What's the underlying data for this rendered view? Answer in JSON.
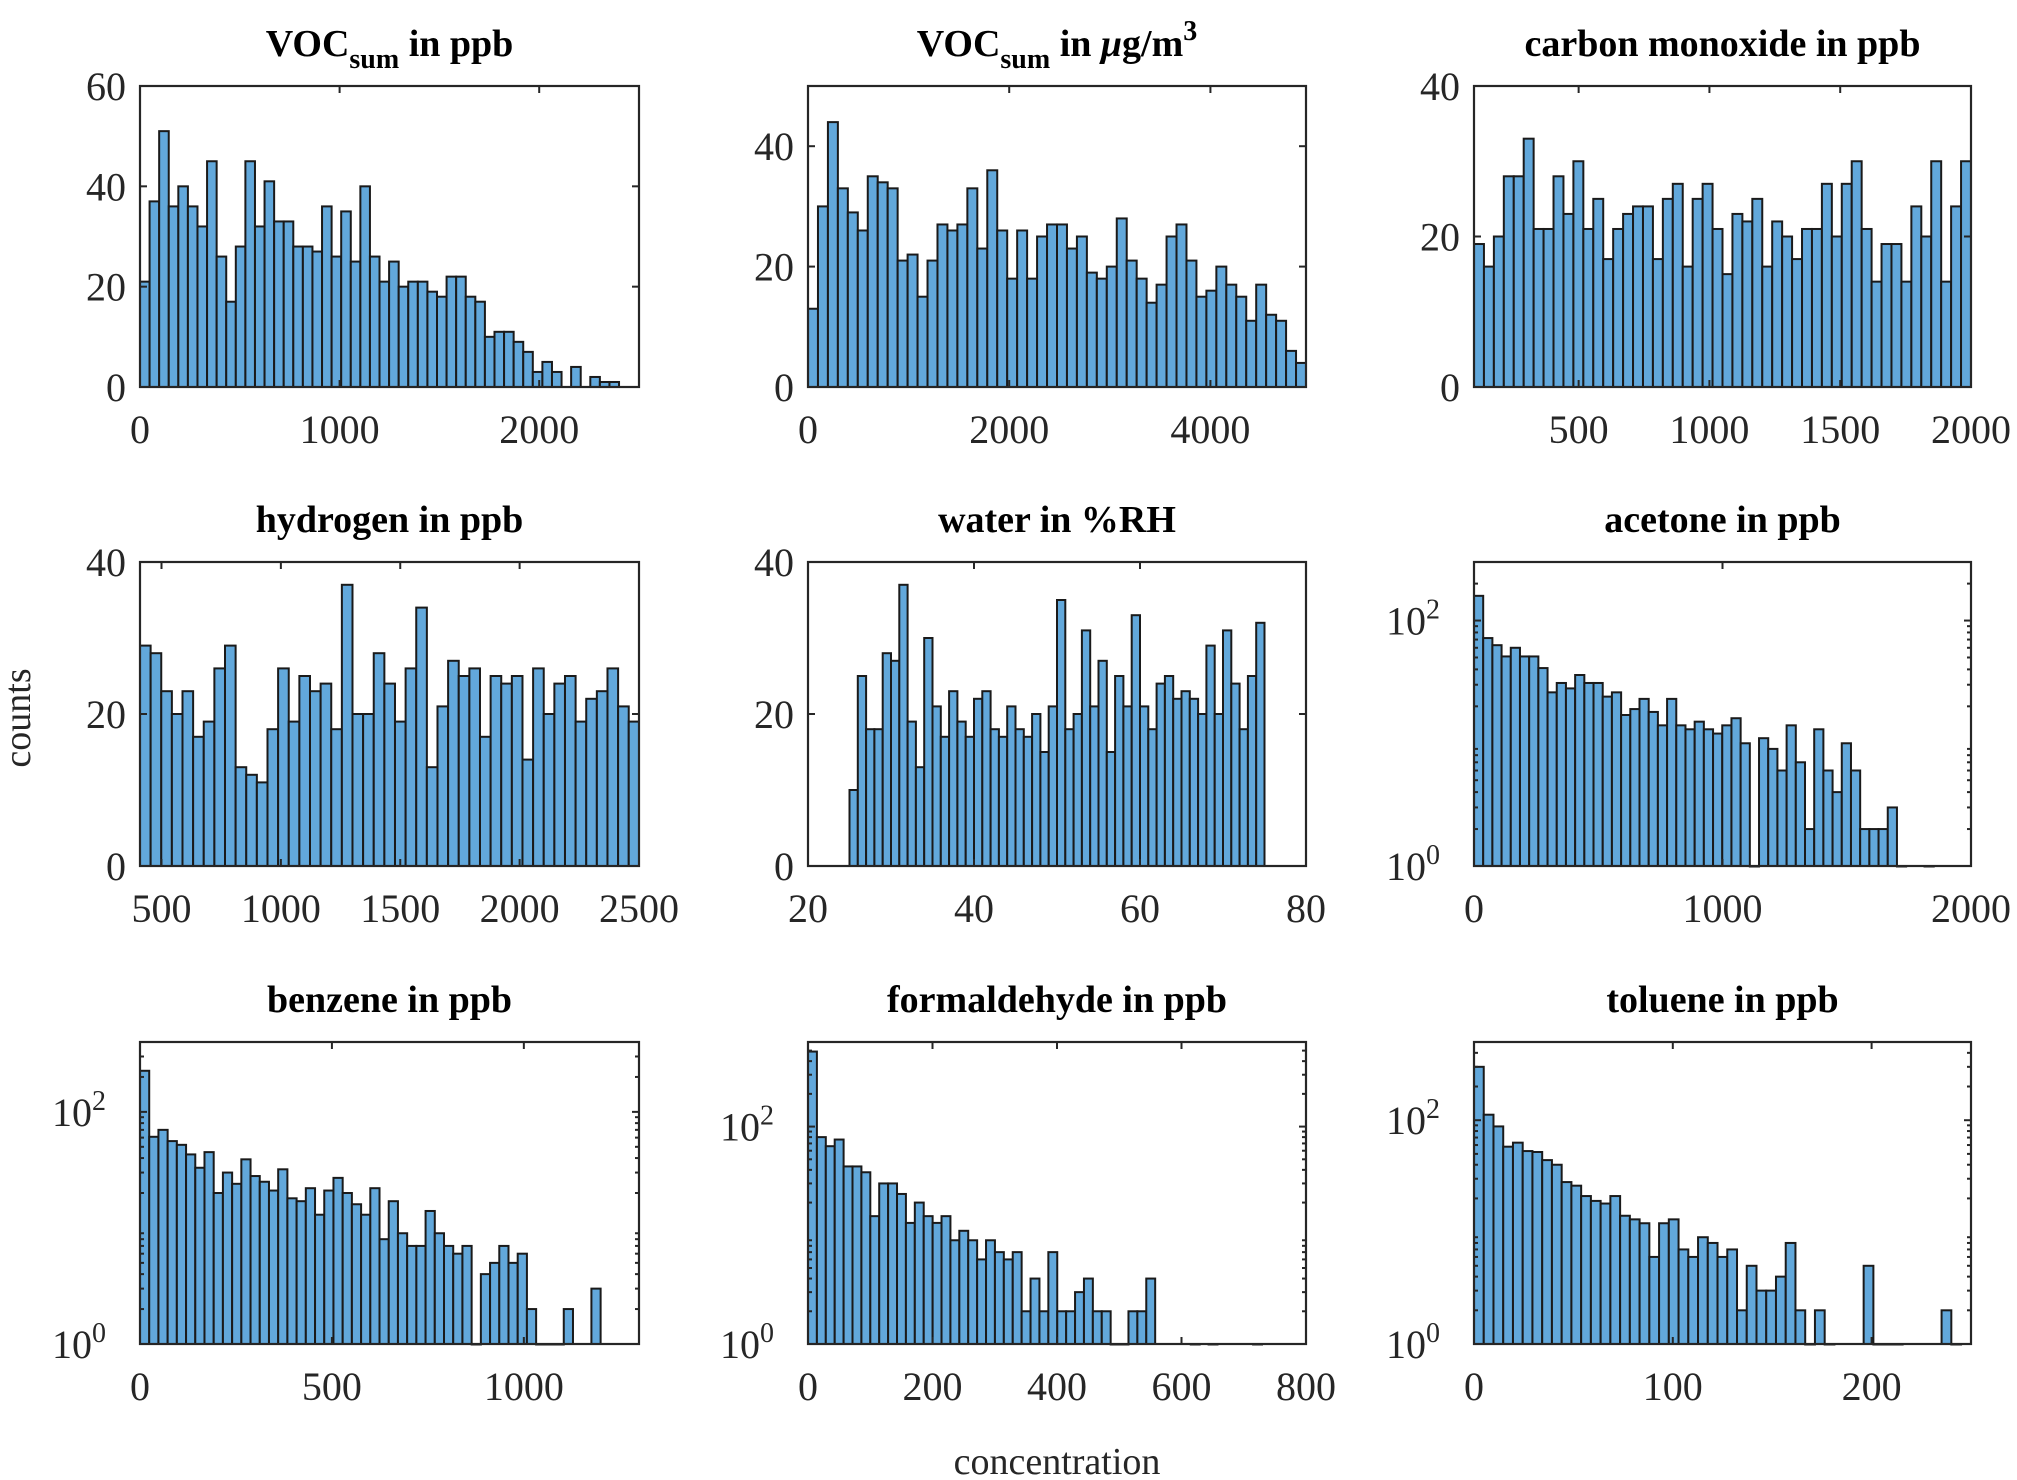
{
  "chart_data": {
    "type": "bar",
    "layout": "3x3 grid of histograms",
    "xlabel": "concentration",
    "ylabel": "counts",
    "bar_color": "#62A8DB",
    "edge_color": "#1a1a1a",
    "panels": [
      {
        "title": "VOC",
        "title_sub": "sum",
        "title_rest": " in ppb",
        "title_italic_mu": false,
        "yscale": "linear",
        "xlim": [
          0,
          2500
        ],
        "ylim": [
          0,
          60
        ],
        "xticks": [
          0,
          1000,
          2000
        ],
        "xtick_labels": [
          "0",
          "1000",
          "2000"
        ],
        "yticks": [
          0,
          20,
          40,
          60
        ],
        "ytick_labels": [
          "0",
          "20",
          "40",
          "60"
        ],
        "bin_start": 0,
        "bin_width": 48,
        "counts": [
          21,
          37,
          51,
          36,
          40,
          36,
          32,
          45,
          26,
          17,
          28,
          45,
          32,
          41,
          33,
          33,
          28,
          28,
          27,
          36,
          26,
          35,
          25,
          40,
          26,
          21,
          25,
          20,
          21,
          21,
          19,
          18,
          22,
          22,
          18,
          17,
          10,
          11,
          11,
          9,
          7,
          3,
          5,
          3,
          0,
          4,
          0,
          2,
          1,
          1
        ]
      },
      {
        "title": "VOC",
        "title_sub": "sum",
        "title_rest": " in ",
        "title_italic_mu": true,
        "title_unit": "g/m",
        "title_sup": "3",
        "yscale": "linear",
        "xlim": [
          0,
          4950
        ],
        "ylim": [
          0,
          50
        ],
        "xticks": [
          0,
          2000,
          4000
        ],
        "xtick_labels": [
          "0",
          "2000",
          "4000"
        ],
        "yticks": [
          0,
          20,
          40
        ],
        "ytick_labels": [
          "0",
          "20",
          "40"
        ],
        "bin_start": 0,
        "bin_width": 99,
        "counts": [
          13,
          30,
          44,
          33,
          29,
          26,
          35,
          34,
          33,
          21,
          22,
          15,
          21,
          27,
          26,
          27,
          33,
          23,
          36,
          26,
          18,
          26,
          18,
          25,
          27,
          27,
          23,
          25,
          19,
          18,
          20,
          28,
          21,
          18,
          14,
          17,
          25,
          27,
          21,
          15,
          16,
          20,
          17,
          15,
          11,
          17,
          12,
          11,
          6,
          4
        ]
      },
      {
        "title": "carbon monoxide in ppb",
        "yscale": "linear",
        "xlim": [
          100,
          2000
        ],
        "ylim": [
          0,
          40
        ],
        "xticks": [
          500,
          1000,
          1500,
          2000
        ],
        "xtick_labels": [
          "500",
          "1000",
          "1500",
          "2000"
        ],
        "yticks": [
          0,
          20,
          40
        ],
        "ytick_labels": [
          "0",
          "20",
          "40"
        ],
        "bin_start": 100,
        "bin_width": 38,
        "counts": [
          19,
          16,
          20,
          28,
          28,
          33,
          21,
          21,
          28,
          23,
          30,
          21,
          25,
          17,
          21,
          23,
          24,
          24,
          17,
          25,
          27,
          16,
          25,
          27,
          21,
          15,
          23,
          22,
          25,
          16,
          22,
          20,
          17,
          21,
          21,
          27,
          20,
          27,
          30,
          21,
          14,
          19,
          19,
          14,
          24,
          20,
          30,
          14,
          24,
          30
        ]
      },
      {
        "title": "hydrogen in ppb",
        "yscale": "linear",
        "xlim": [
          410,
          2500
        ],
        "ylim": [
          0,
          40
        ],
        "xticks": [
          500,
          1000,
          1500,
          2000,
          2500
        ],
        "xtick_labels": [
          "500",
          "1000",
          "1500",
          "2000",
          "2500"
        ],
        "yticks": [
          0,
          20,
          40
        ],
        "ytick_labels": [
          "0",
          "20",
          "40"
        ],
        "bin_start": 410,
        "bin_width": 44.5,
        "counts": [
          29,
          28,
          23,
          20,
          23,
          17,
          19,
          26,
          29,
          13,
          12,
          11,
          18,
          26,
          19,
          25,
          23,
          24,
          18,
          37,
          20,
          20,
          28,
          24,
          19,
          26,
          34,
          13,
          21,
          27,
          25,
          26,
          17,
          25,
          24,
          25,
          14,
          26,
          20,
          24,
          25,
          19,
          22,
          23,
          26,
          21,
          19
        ]
      },
      {
        "title": "water in %RH",
        "yscale": "linear",
        "xlim": [
          20,
          80
        ],
        "ylim": [
          0,
          40
        ],
        "xticks": [
          20,
          40,
          60,
          80
        ],
        "xtick_labels": [
          "20",
          "40",
          "60",
          "80"
        ],
        "yticks": [
          0,
          20,
          40
        ],
        "ytick_labels": [
          "0",
          "20",
          "40"
        ],
        "bin_start": 25,
        "bin_width": 1,
        "counts": [
          10,
          25,
          18,
          18,
          28,
          27,
          37,
          19,
          13,
          30,
          21,
          17,
          23,
          19,
          17,
          22,
          23,
          18,
          17,
          21,
          18,
          17,
          20,
          15,
          21,
          35,
          18,
          20,
          31,
          21,
          27,
          15,
          25,
          21,
          33,
          21,
          18,
          24,
          25,
          22,
          23,
          22,
          20,
          29,
          20,
          31,
          24,
          18,
          25,
          32
        ]
      },
      {
        "title": "acetone in ppb",
        "yscale": "log",
        "xlim": [
          0,
          2000
        ],
        "ylim": [
          1,
          300
        ],
        "xticks": [
          0,
          1000,
          2000
        ],
        "xtick_labels": [
          "0",
          "1000",
          "2000"
        ],
        "yticks": [
          1,
          100
        ],
        "ytick_labels": [
          "10^0",
          "10^2"
        ],
        "bin_start": 0,
        "bin_width": 37,
        "counts": [
          159,
          72,
          63,
          51,
          60,
          51,
          51,
          41,
          26,
          31,
          28,
          36,
          31,
          31,
          24,
          26,
          17,
          19,
          23,
          18,
          14,
          23,
          14,
          13,
          15,
          13,
          12,
          14,
          16,
          10,
          1,
          11,
          9,
          6,
          14,
          7,
          2,
          13,
          6,
          4,
          10,
          6,
          2,
          2,
          2,
          3,
          1,
          0,
          0,
          1
        ]
      },
      {
        "title": "benzene in ppb",
        "yscale": "log",
        "xlim": [
          0,
          1300
        ],
        "ylim": [
          1,
          400
        ],
        "xticks": [
          0,
          500,
          1000
        ],
        "xtick_labels": [
          "0",
          "500",
          "1000"
        ],
        "yticks": [
          1,
          100
        ],
        "ytick_labels": [
          "10^0",
          "10^2"
        ],
        "bin_start": 0,
        "bin_width": 24,
        "counts": [
          226,
          61,
          70,
          56,
          52,
          43,
          33,
          45,
          20,
          30,
          24,
          39,
          28,
          25,
          21,
          32,
          18,
          17,
          22,
          13,
          21,
          27,
          20,
          16,
          13,
          22,
          8,
          17,
          9,
          7,
          7,
          14,
          9,
          7,
          6,
          7,
          1,
          4,
          5,
          7,
          5,
          6,
          2,
          1,
          1,
          1,
          2,
          0,
          0,
          3
        ]
      },
      {
        "title": "formaldehyde in ppb",
        "yscale": "log",
        "xlim": [
          0,
          800
        ],
        "ylim": [
          1,
          600
        ],
        "xticks": [
          0,
          200,
          400,
          600,
          800
        ],
        "xtick_labels": [
          "0",
          "200",
          "400",
          "600",
          "800"
        ],
        "yticks": [
          1,
          100
        ],
        "ytick_labels": [
          "10^0",
          "10^2"
        ],
        "bin_start": 0,
        "bin_width": 14.3,
        "counts": [
          490,
          80,
          66,
          76,
          43,
          43,
          38,
          15,
          30,
          30,
          24,
          13,
          20,
          15,
          13,
          15,
          9,
          11,
          9,
          6,
          9,
          7,
          6,
          7,
          2,
          4,
          2,
          7,
          2,
          2,
          3,
          4,
          2,
          2,
          1,
          1,
          2,
          2,
          4,
          0,
          0,
          0,
          0,
          1,
          0,
          1,
          0,
          0,
          0,
          0,
          1
        ]
      },
      {
        "title": "toluene in ppb",
        "yscale": "log",
        "xlim": [
          0,
          250
        ],
        "ylim": [
          1,
          500
        ],
        "xticks": [
          0,
          100,
          200
        ],
        "xtick_labels": [
          "0",
          "100",
          "200"
        ],
        "yticks": [
          1,
          100
        ],
        "ytick_labels": [
          "10^0",
          "10^2"
        ],
        "bin_start": 0,
        "bin_width": 4.9,
        "counts": [
          300,
          112,
          88,
          58,
          63,
          53,
          52,
          44,
          40,
          28,
          26,
          21,
          19,
          18,
          21,
          14,
          13,
          12,
          6,
          12,
          13,
          7,
          6,
          9,
          8,
          6,
          7,
          2,
          5,
          3,
          3,
          4,
          8,
          2,
          1,
          2,
          1,
          0,
          0,
          0,
          5,
          1,
          1,
          1,
          0,
          0,
          0,
          0,
          2,
          1
        ]
      }
    ]
  }
}
